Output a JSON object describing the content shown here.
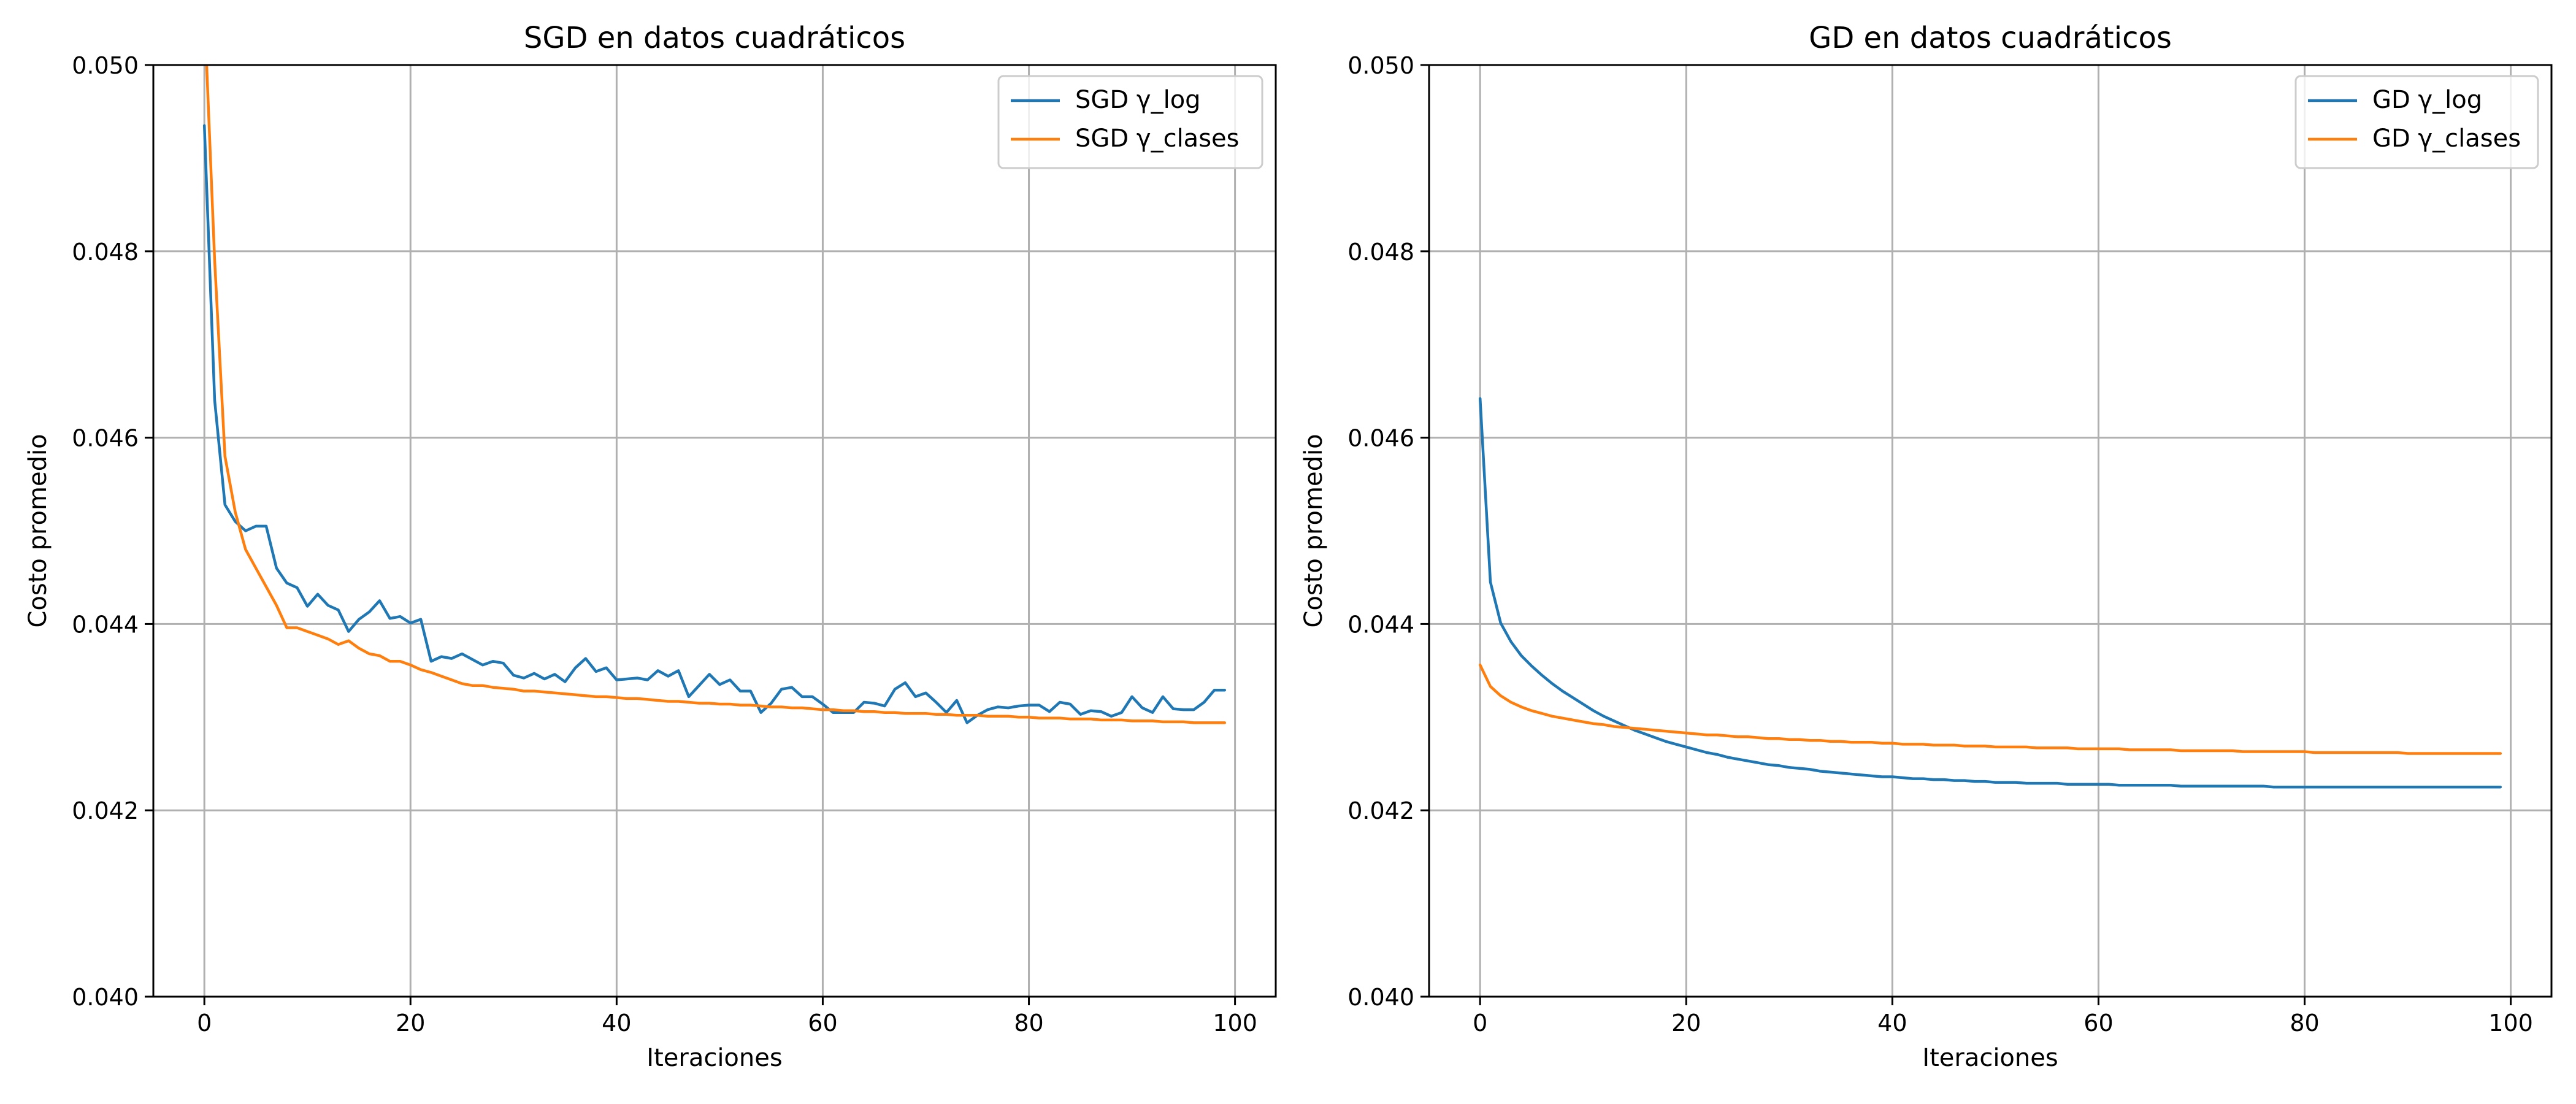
{
  "chart_data": [
    {
      "type": "line",
      "title": "SGD en datos cuadráticos",
      "xlabel": "Iteraciones",
      "ylabel": "Costo promedio",
      "xlim": [
        -4.95,
        103.95
      ],
      "ylim": [
        0.04,
        0.05
      ],
      "xticks": [
        0,
        20,
        40,
        60,
        80,
        100
      ],
      "yticks": [
        0.04,
        0.042,
        0.044,
        0.046,
        0.048,
        0.05
      ],
      "ytick_labels": [
        "0.040",
        "0.042",
        "0.044",
        "0.046",
        "0.048",
        "0.050"
      ],
      "grid": true,
      "legend_position": "top-right",
      "series": [
        {
          "name": "SGD γ_log",
          "color": "#1f77b4",
          "x": [
            0,
            1,
            2,
            3,
            4,
            5,
            6,
            7,
            8,
            9,
            10,
            11,
            12,
            13,
            14,
            15,
            16,
            17,
            18,
            19,
            20,
            21,
            22,
            23,
            24,
            25,
            26,
            27,
            28,
            29,
            30,
            31,
            32,
            33,
            34,
            35,
            36,
            37,
            38,
            39,
            40,
            41,
            42,
            43,
            44,
            45,
            46,
            47,
            48,
            49,
            50,
            51,
            52,
            53,
            54,
            55,
            56,
            57,
            58,
            59,
            60,
            61,
            62,
            63,
            64,
            65,
            66,
            67,
            68,
            69,
            70,
            71,
            72,
            73,
            74,
            75,
            76,
            77,
            78,
            79,
            80,
            81,
            82,
            83,
            84,
            85,
            86,
            87,
            88,
            89,
            90,
            91,
            92,
            93,
            94,
            95,
            96,
            97,
            98,
            99
          ],
          "y": [
            0.04935,
            0.0464,
            0.04528,
            0.0451,
            0.045,
            0.04505,
            0.04505,
            0.0446,
            0.04444,
            0.04439,
            0.04419,
            0.04432,
            0.0442,
            0.04415,
            0.04392,
            0.04405,
            0.04413,
            0.04425,
            0.04406,
            0.04408,
            0.04401,
            0.04405,
            0.0436,
            0.04365,
            0.04363,
            0.04368,
            0.04362,
            0.04356,
            0.0436,
            0.04358,
            0.04345,
            0.04342,
            0.04347,
            0.04341,
            0.04346,
            0.04338,
            0.04353,
            0.04363,
            0.04349,
            0.04353,
            0.0434,
            0.04341,
            0.04342,
            0.0434,
            0.0435,
            0.04344,
            0.0435,
            0.04322,
            0.04334,
            0.04346,
            0.04335,
            0.0434,
            0.04328,
            0.04328,
            0.04305,
            0.04315,
            0.0433,
            0.04332,
            0.04322,
            0.04322,
            0.04314,
            0.04305,
            0.04305,
            0.04305,
            0.04316,
            0.04315,
            0.04312,
            0.0433,
            0.04337,
            0.04322,
            0.04326,
            0.04316,
            0.04305,
            0.04318,
            0.04294,
            0.04302,
            0.04308,
            0.04311,
            0.0431,
            0.04312,
            0.04313,
            0.04313,
            0.04306,
            0.04316,
            0.04314,
            0.04303,
            0.04307,
            0.04306,
            0.04301,
            0.04305,
            0.04322,
            0.0431,
            0.04305,
            0.04322,
            0.04309,
            0.04308,
            0.04308,
            0.04316,
            0.04329,
            0.04329
          ]
        },
        {
          "name": "SGD γ_clases",
          "color": "#ff7f0e",
          "x": [
            0,
            1,
            2,
            3,
            4,
            5,
            6,
            7,
            8,
            9,
            10,
            11,
            12,
            13,
            14,
            15,
            16,
            17,
            18,
            19,
            20,
            21,
            22,
            23,
            24,
            25,
            26,
            27,
            28,
            29,
            30,
            31,
            32,
            33,
            34,
            35,
            36,
            37,
            38,
            39,
            40,
            41,
            42,
            43,
            44,
            45,
            46,
            47,
            48,
            49,
            50,
            51,
            52,
            53,
            54,
            55,
            56,
            57,
            58,
            59,
            60,
            61,
            62,
            63,
            64,
            65,
            66,
            67,
            68,
            69,
            70,
            71,
            72,
            73,
            74,
            75,
            76,
            77,
            78,
            79,
            80,
            81,
            82,
            83,
            84,
            85,
            86,
            87,
            88,
            89,
            90,
            91,
            92,
            93,
            94,
            95,
            96,
            97,
            98,
            99
          ],
          "y": [
            0.0506,
            0.0479,
            0.0458,
            0.0452,
            0.0448,
            0.0446,
            0.0444,
            0.0442,
            0.04396,
            0.04396,
            0.04392,
            0.04388,
            0.04384,
            0.04378,
            0.04382,
            0.04374,
            0.04368,
            0.04366,
            0.0436,
            0.0436,
            0.04356,
            0.04351,
            0.04348,
            0.04344,
            0.0434,
            0.04336,
            0.04334,
            0.04334,
            0.04332,
            0.04331,
            0.0433,
            0.04328,
            0.04328,
            0.04327,
            0.04326,
            0.04325,
            0.04324,
            0.04323,
            0.04322,
            0.04322,
            0.04321,
            0.0432,
            0.0432,
            0.04319,
            0.04318,
            0.04317,
            0.04317,
            0.04316,
            0.04315,
            0.04315,
            0.04314,
            0.04314,
            0.04313,
            0.04313,
            0.04312,
            0.04311,
            0.04311,
            0.0431,
            0.0431,
            0.04309,
            0.04308,
            0.04308,
            0.04307,
            0.04307,
            0.04306,
            0.04306,
            0.04305,
            0.04305,
            0.04304,
            0.04304,
            0.04304,
            0.04303,
            0.04303,
            0.04302,
            0.04302,
            0.04302,
            0.04301,
            0.04301,
            0.04301,
            0.043,
            0.043,
            0.04299,
            0.04299,
            0.04299,
            0.04298,
            0.04298,
            0.04298,
            0.04297,
            0.04297,
            0.04297,
            0.04296,
            0.04296,
            0.04296,
            0.04295,
            0.04295,
            0.04295,
            0.04294,
            0.04294,
            0.04294,
            0.04294
          ]
        }
      ]
    },
    {
      "type": "line",
      "title": "GD en datos cuadráticos",
      "xlabel": "Iteraciones",
      "ylabel": "Costo promedio",
      "xlim": [
        -4.95,
        103.95
      ],
      "ylim": [
        0.04,
        0.05
      ],
      "xticks": [
        0,
        20,
        40,
        60,
        80,
        100
      ],
      "yticks": [
        0.04,
        0.042,
        0.044,
        0.046,
        0.048,
        0.05
      ],
      "ytick_labels": [
        "0.040",
        "0.042",
        "0.044",
        "0.046",
        "0.048",
        "0.050"
      ],
      "grid": true,
      "legend_position": "top-right",
      "series": [
        {
          "name": "GD γ_log",
          "color": "#1f77b4",
          "x": [
            0,
            1,
            2,
            3,
            4,
            5,
            6,
            7,
            8,
            9,
            10,
            11,
            12,
            13,
            14,
            15,
            16,
            17,
            18,
            19,
            20,
            21,
            22,
            23,
            24,
            25,
            26,
            27,
            28,
            29,
            30,
            31,
            32,
            33,
            34,
            35,
            36,
            37,
            38,
            39,
            40,
            41,
            42,
            43,
            44,
            45,
            46,
            47,
            48,
            49,
            50,
            51,
            52,
            53,
            54,
            55,
            56,
            57,
            58,
            59,
            60,
            61,
            62,
            63,
            64,
            65,
            66,
            67,
            68,
            69,
            70,
            71,
            72,
            73,
            74,
            75,
            76,
            77,
            78,
            79,
            80,
            81,
            82,
            83,
            84,
            85,
            86,
            87,
            88,
            89,
            90,
            91,
            92,
            93,
            94,
            95,
            96,
            97,
            98,
            99
          ],
          "y": [
            0.04642,
            0.04445,
            0.04401,
            0.04381,
            0.04366,
            0.04355,
            0.04345,
            0.04336,
            0.04328,
            0.04321,
            0.04314,
            0.04307,
            0.04301,
            0.04296,
            0.04291,
            0.04286,
            0.04282,
            0.04278,
            0.04274,
            0.04271,
            0.04268,
            0.04265,
            0.04262,
            0.0426,
            0.04257,
            0.04255,
            0.04253,
            0.04251,
            0.04249,
            0.04248,
            0.04246,
            0.04245,
            0.04244,
            0.04242,
            0.04241,
            0.0424,
            0.04239,
            0.04238,
            0.04237,
            0.04236,
            0.04236,
            0.04235,
            0.04234,
            0.04234,
            0.04233,
            0.04233,
            0.04232,
            0.04232,
            0.04231,
            0.04231,
            0.0423,
            0.0423,
            0.0423,
            0.04229,
            0.04229,
            0.04229,
            0.04229,
            0.04228,
            0.04228,
            0.04228,
            0.04228,
            0.04228,
            0.04227,
            0.04227,
            0.04227,
            0.04227,
            0.04227,
            0.04227,
            0.04226,
            0.04226,
            0.04226,
            0.04226,
            0.04226,
            0.04226,
            0.04226,
            0.04226,
            0.04226,
            0.04225,
            0.04225,
            0.04225,
            0.04225,
            0.04225,
            0.04225,
            0.04225,
            0.04225,
            0.04225,
            0.04225,
            0.04225,
            0.04225,
            0.04225,
            0.04225,
            0.04225,
            0.04225,
            0.04225,
            0.04225,
            0.04225,
            0.04225,
            0.04225,
            0.04225,
            0.04225
          ]
        },
        {
          "name": "GD γ_clases",
          "color": "#ff7f0e",
          "x": [
            0,
            1,
            2,
            3,
            4,
            5,
            6,
            7,
            8,
            9,
            10,
            11,
            12,
            13,
            14,
            15,
            16,
            17,
            18,
            19,
            20,
            21,
            22,
            23,
            24,
            25,
            26,
            27,
            28,
            29,
            30,
            31,
            32,
            33,
            34,
            35,
            36,
            37,
            38,
            39,
            40,
            41,
            42,
            43,
            44,
            45,
            46,
            47,
            48,
            49,
            50,
            51,
            52,
            53,
            54,
            55,
            56,
            57,
            58,
            59,
            60,
            61,
            62,
            63,
            64,
            65,
            66,
            67,
            68,
            69,
            70,
            71,
            72,
            73,
            74,
            75,
            76,
            77,
            78,
            79,
            80,
            81,
            82,
            83,
            84,
            85,
            86,
            87,
            88,
            89,
            90,
            91,
            92,
            93,
            94,
            95,
            96,
            97,
            98,
            99
          ],
          "y": [
            0.04356,
            0.04333,
            0.04323,
            0.04316,
            0.04311,
            0.04307,
            0.04304,
            0.04301,
            0.04299,
            0.04297,
            0.04295,
            0.04293,
            0.04292,
            0.0429,
            0.04289,
            0.04288,
            0.04287,
            0.04286,
            0.04285,
            0.04284,
            0.04283,
            0.04282,
            0.04281,
            0.04281,
            0.0428,
            0.04279,
            0.04279,
            0.04278,
            0.04277,
            0.04277,
            0.04276,
            0.04276,
            0.04275,
            0.04275,
            0.04274,
            0.04274,
            0.04273,
            0.04273,
            0.04273,
            0.04272,
            0.04272,
            0.04271,
            0.04271,
            0.04271,
            0.0427,
            0.0427,
            0.0427,
            0.04269,
            0.04269,
            0.04269,
            0.04268,
            0.04268,
            0.04268,
            0.04268,
            0.04267,
            0.04267,
            0.04267,
            0.04267,
            0.04266,
            0.04266,
            0.04266,
            0.04266,
            0.04266,
            0.04265,
            0.04265,
            0.04265,
            0.04265,
            0.04265,
            0.04264,
            0.04264,
            0.04264,
            0.04264,
            0.04264,
            0.04264,
            0.04263,
            0.04263,
            0.04263,
            0.04263,
            0.04263,
            0.04263,
            0.04263,
            0.04262,
            0.04262,
            0.04262,
            0.04262,
            0.04262,
            0.04262,
            0.04262,
            0.04262,
            0.04262,
            0.04261,
            0.04261,
            0.04261,
            0.04261,
            0.04261,
            0.04261,
            0.04261,
            0.04261,
            0.04261,
            0.04261
          ]
        }
      ]
    }
  ]
}
